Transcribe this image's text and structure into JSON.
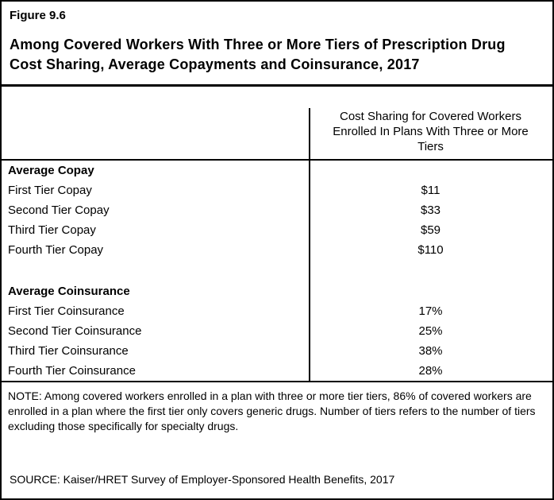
{
  "figure": {
    "label": "Figure 9.6",
    "title": "Among Covered Workers With Three or More Tiers of Prescription Drug Cost Sharing, Average Copayments and Coinsurance, 2017"
  },
  "table": {
    "value_header": "Cost Sharing for Covered Workers Enrolled In Plans With Three or More Tiers"
  },
  "note": "NOTE: Among covered workers enrolled in a plan with three or more tier tiers, 86% of covered workers are enrolled in a plan where the first tier only covers generic drugs. Number of tiers refers to the number of tiers excluding those specifically for specialty drugs.",
  "source": "SOURCE: Kaiser/HRET Survey of Employer-Sponsored Health Benefits, 2017",
  "chart_data": {
    "type": "table",
    "title": "Among Covered Workers With Three or More Tiers of Prescription Drug Cost Sharing, Average Copayments and Coinsurance, 2017",
    "columns": [
      "",
      "Cost Sharing for Covered Workers Enrolled In Plans With Three or More Tiers"
    ],
    "rows": [
      {
        "label": "Average Copay",
        "value": ""
      },
      {
        "label": "First Tier Copay",
        "value": "$11"
      },
      {
        "label": "Second Tier Copay",
        "value": "$33"
      },
      {
        "label": "Third Tier Copay",
        "value": "$59"
      },
      {
        "label": "Fourth Tier Copay",
        "value": "$110"
      },
      {
        "label": "Average Coinsurance",
        "value": ""
      },
      {
        "label": "First Tier Coinsurance",
        "value": "17%"
      },
      {
        "label": "Second Tier Coinsurance",
        "value": "25%"
      },
      {
        "label": "Third Tier Coinsurance",
        "value": "38%"
      },
      {
        "label": "Fourth Tier Coinsurance",
        "value": "28%"
      }
    ]
  }
}
